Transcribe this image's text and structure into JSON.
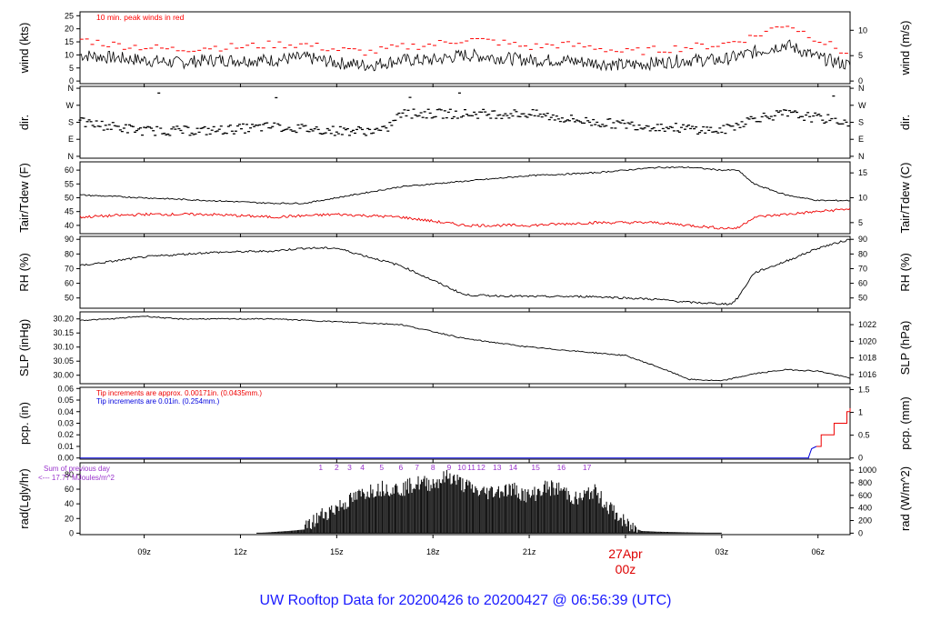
{
  "title": "UW Rooftop Data for 20200426  to  20200427 @ 06:56:39  (UTC)",
  "x_axis": {
    "ticks": [
      "09z",
      "12z",
      "15z",
      "18z",
      "21z",
      "00z",
      "03z",
      "06z"
    ],
    "date_label": "27Apr"
  },
  "panels": {
    "wind": {
      "ylabel_left": "wind (kts)",
      "ylabel_right": "wind (m/s)",
      "ticks_left": [
        "0",
        "5",
        "10",
        "15",
        "20",
        "25"
      ],
      "ticks_right": [
        "0",
        "5",
        "10"
      ],
      "note": "10 min. peak winds in red"
    },
    "dir": {
      "ylabel_left": "dir.",
      "ylabel_right": "dir.",
      "ticks": [
        "N",
        "E",
        "S",
        "W",
        "N"
      ]
    },
    "temp": {
      "ylabel_left": "Tair/Tdew (F)",
      "ylabel_right": "Tair/Tdew (C)",
      "ticks_left": [
        "40",
        "45",
        "50",
        "55",
        "60"
      ],
      "ticks_right": [
        "5",
        "10",
        "15"
      ]
    },
    "rh": {
      "ylabel_left": "RH (%)",
      "ylabel_right": "RH (%)",
      "ticks": [
        "50",
        "60",
        "70",
        "80",
        "90"
      ]
    },
    "slp": {
      "ylabel_left": "SLP (inHg)",
      "ylabel_right": "SLP (hPa)",
      "ticks_left": [
        "30.00",
        "30.05",
        "30.10",
        "30.15",
        "30.20"
      ],
      "ticks_right": [
        "1016",
        "1018",
        "1020",
        "1022"
      ]
    },
    "pcp": {
      "ylabel_left": "pcp. (in)",
      "ylabel_right": "pcp. (mm)",
      "ticks_left": [
        "0.00",
        "0.01",
        "0.02",
        "0.03",
        "0.04",
        "0.05",
        "0.06"
      ],
      "ticks_right": [
        "0",
        "0.5",
        "1",
        "1.5"
      ],
      "note_red": "Tip increments are approx. 0.00171in. (0.0435mm.)",
      "note_blue": "Tip increments are 0.01in. (0.254mm.)"
    },
    "rad": {
      "ylabel_left": "rad(Lgly/hr)",
      "ylabel_right": "rad (W/m^2)",
      "ticks_left": [
        "0",
        "20",
        "40",
        "60",
        "80"
      ],
      "ticks_right": [
        "0",
        "200",
        "400",
        "600",
        "800",
        "1000"
      ],
      "prev_day_1": "Sum of previous day",
      "prev_day_2": "<--- 17.77 MJoules/m^2",
      "hour_labels": [
        "1",
        "2",
        "3",
        "4",
        "5",
        "6",
        "7",
        "8",
        "9",
        "10",
        "11",
        "12",
        "13",
        "14",
        "15",
        "16",
        "17"
      ]
    }
  },
  "colors": {
    "title": "#1a1aff",
    "date": "#dd0000",
    "peak": "#ff0000",
    "dew": "#ee0000",
    "blue": "#0000dd",
    "purple": "#9933cc"
  },
  "chart_data": {
    "type": "line",
    "x_unit": "hours UTC from 20200426 07z",
    "x_range": [
      0,
      24
    ],
    "series": [
      {
        "panel": "wind",
        "name": "wind",
        "x": [
          0,
          1,
          2,
          3,
          4,
          5,
          6,
          7,
          8,
          9,
          10,
          11,
          12,
          13,
          14,
          15,
          16,
          17,
          18,
          19,
          20,
          21,
          22,
          23,
          24
        ],
        "values": [
          10,
          9,
          8,
          7,
          8,
          8,
          8,
          9,
          7,
          6,
          8,
          8,
          10,
          9,
          8,
          8,
          7,
          6,
          7,
          8,
          8,
          11,
          14,
          9,
          6
        ]
      },
      {
        "panel": "wind",
        "name": "10 min. peak winds",
        "x": [
          0,
          1,
          2,
          3,
          4,
          5,
          6,
          7,
          8,
          9,
          10,
          11,
          12,
          13,
          14,
          15,
          16,
          17,
          18,
          19,
          20,
          21,
          22,
          23,
          24
        ],
        "values": [
          16,
          14,
          13,
          12,
          13,
          13,
          14,
          14,
          12,
          11,
          13,
          14,
          16,
          15,
          13,
          14,
          13,
          11,
          12,
          13,
          14,
          17,
          22,
          16,
          10
        ]
      },
      {
        "panel": "dir",
        "name": "dir.",
        "x": [
          0,
          2,
          4,
          6,
          8,
          9.5,
          10,
          12,
          14,
          16,
          18,
          20,
          21,
          22,
          24
        ],
        "values": [
          "S",
          "SE",
          "SE",
          "SSE",
          "SE",
          "SE",
          "SW",
          "SW",
          "SW",
          "S",
          "SSE",
          "SE",
          "SSW",
          "SW",
          "S"
        ]
      },
      {
        "panel": "temp",
        "name": "Tair",
        "x": [
          0,
          2,
          4,
          6,
          7,
          8,
          10,
          12,
          14,
          16,
          18,
          19,
          20,
          20.5,
          21,
          22,
          23,
          24
        ],
        "values": [
          51,
          50,
          49,
          48,
          48,
          50,
          54,
          56,
          58,
          59,
          61,
          61,
          60,
          60,
          55,
          51,
          49,
          49
        ]
      },
      {
        "panel": "temp",
        "name": "Tdew",
        "x": [
          0,
          2,
          4,
          6,
          8,
          10,
          12,
          14,
          16,
          18,
          20,
          20.5,
          21,
          22,
          23,
          24
        ],
        "values": [
          43,
          44,
          44,
          43,
          44,
          43,
          40,
          40,
          41,
          41,
          39,
          39,
          43,
          44,
          45,
          46
        ]
      },
      {
        "panel": "rh",
        "name": "RH",
        "x": [
          0,
          2,
          4,
          6,
          7,
          8,
          10,
          11,
          12,
          14,
          16,
          18,
          19,
          20,
          20.3,
          20.5,
          21,
          22,
          23,
          24
        ],
        "values": [
          72,
          78,
          81,
          82,
          84,
          84,
          72,
          62,
          52,
          51,
          51,
          49,
          47,
          46,
          46,
          50,
          67,
          75,
          84,
          90
        ]
      },
      {
        "panel": "slp",
        "name": "SLP",
        "x": [
          0,
          1,
          2,
          3,
          4,
          6,
          8,
          10,
          12,
          14,
          16,
          17,
          18,
          19,
          20,
          21,
          22,
          23,
          24
        ],
        "values": [
          30.195,
          30.2,
          30.21,
          30.2,
          30.2,
          30.2,
          30.19,
          30.18,
          30.13,
          30.1,
          30.08,
          30.07,
          30.03,
          29.985,
          29.98,
          30.005,
          30.02,
          30.015,
          29.99
        ]
      },
      {
        "panel": "pcp",
        "name": "pcp. (approx. tips)",
        "x": [
          22.95,
          23.1,
          23.5,
          23.9,
          24
        ],
        "values": [
          0.01,
          0.02,
          0.03,
          0.04,
          0.043
        ]
      },
      {
        "panel": "pcp",
        "name": "pcp. (0.01in tips)",
        "x": [
          22.7,
          22.75,
          22.8,
          22.95
        ],
        "values": [
          0,
          0.004,
          0.008,
          0.01
        ]
      },
      {
        "panel": "rad",
        "name": "rad",
        "x": [
          5.5,
          6.5,
          7,
          7.5,
          8,
          9,
          9.5,
          10,
          10.5,
          11,
          11.5,
          12,
          12.5,
          13,
          13.5,
          14,
          14.5,
          15,
          15.5,
          16,
          17,
          17.5,
          18,
          19,
          20
        ],
        "values": [
          0,
          3,
          5,
          24,
          35,
          58,
          62,
          60,
          68,
          68,
          78,
          65,
          55,
          58,
          60,
          50,
          62,
          60,
          45,
          58,
          12,
          3,
          2,
          1,
          0
        ]
      }
    ]
  }
}
